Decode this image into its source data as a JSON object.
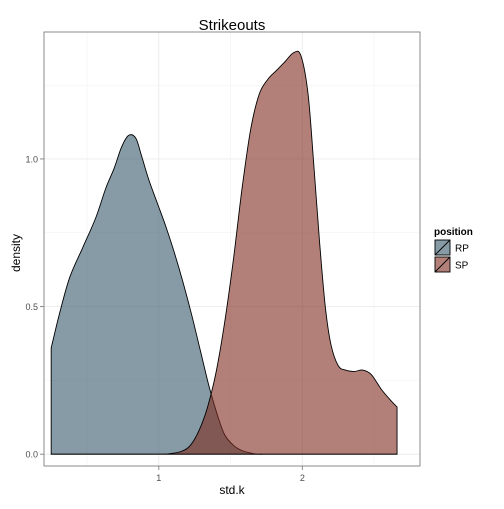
{
  "chart_data": {
    "type": "area",
    "title": "Strikeouts",
    "xlabel": "std.k",
    "ylabel": "density",
    "xlim": [
      0.2,
      2.82
    ],
    "ylim": [
      -0.04,
      1.43
    ],
    "x_ticks": [
      1,
      2
    ],
    "y_ticks": [
      0.0,
      0.5,
      1.0
    ],
    "y_tick_labels": [
      "0.0",
      "0.5",
      "1.0"
    ],
    "x_tick_labels": [
      "1",
      "2"
    ],
    "grid": true,
    "legend": {
      "title": "position",
      "placement": "right",
      "items": [
        {
          "label": "RP",
          "color": "#36596b"
        },
        {
          "label": "SP",
          "color": "#7f2b1e"
        }
      ]
    },
    "series": [
      {
        "name": "RP",
        "color": "#36596b",
        "x": [
          0.25,
          0.31,
          0.38,
          0.47,
          0.56,
          0.63,
          0.69,
          0.74,
          0.79,
          0.84,
          0.88,
          0.93,
          0.99,
          1.05,
          1.11,
          1.17,
          1.23,
          1.29,
          1.35,
          1.41,
          1.46,
          1.52,
          1.58,
          1.64,
          1.69,
          1.75,
          1.82,
          1.88,
          1.95,
          2.02,
          2.1,
          2.2,
          2.35,
          2.5,
          2.66
        ],
        "y": [
          0.36,
          0.48,
          0.6,
          0.7,
          0.8,
          0.9,
          0.97,
          1.04,
          1.08,
          1.07,
          1.01,
          0.93,
          0.85,
          0.77,
          0.68,
          0.58,
          0.47,
          0.35,
          0.23,
          0.13,
          0.065,
          0.03,
          0.012,
          0.004,
          0.0,
          0.0,
          0.0,
          0.0,
          0.0,
          0.0,
          0.0,
          0.0,
          0.0,
          0.0,
          0.0
        ]
      },
      {
        "name": "SP",
        "color": "#7f2b1e",
        "x": [
          0.25,
          0.6,
          1.0,
          1.08,
          1.16,
          1.22,
          1.28,
          1.34,
          1.4,
          1.46,
          1.52,
          1.58,
          1.64,
          1.7,
          1.76,
          1.82,
          1.88,
          1.94,
          1.99,
          2.04,
          2.08,
          2.12,
          2.16,
          2.2,
          2.25,
          2.3,
          2.36,
          2.42,
          2.48,
          2.55,
          2.62,
          2.66
        ],
        "y": [
          0.0,
          0.0,
          0.0,
          0.002,
          0.01,
          0.03,
          0.08,
          0.16,
          0.28,
          0.45,
          0.66,
          0.9,
          1.1,
          1.22,
          1.27,
          1.3,
          1.33,
          1.36,
          1.35,
          1.22,
          0.98,
          0.72,
          0.5,
          0.37,
          0.3,
          0.285,
          0.28,
          0.285,
          0.27,
          0.22,
          0.18,
          0.16
        ]
      }
    ]
  }
}
